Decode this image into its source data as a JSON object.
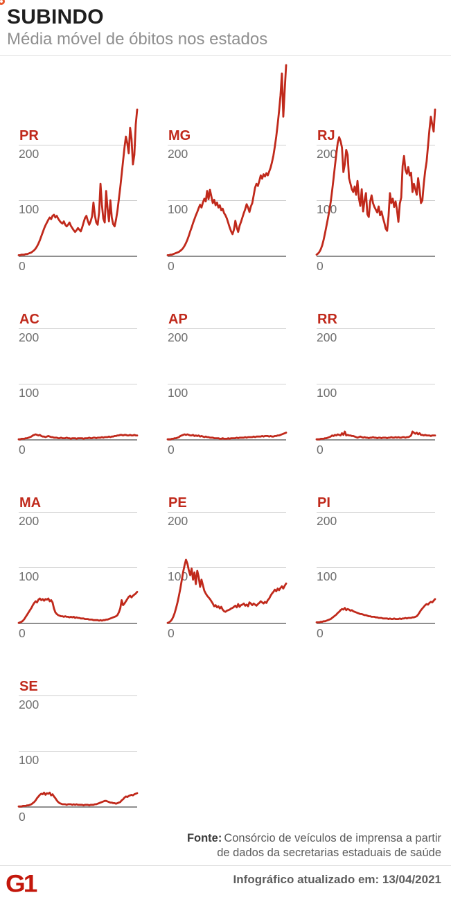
{
  "header": {
    "title": "SUBINDO",
    "subtitle": "Média móvel de óbitos nos estados"
  },
  "colors": {
    "line": "#c0291b",
    "state_label": "#c0291b",
    "gridline": "#cfcfcf",
    "zero_line": "#8f8f8f",
    "logo_red": "#c3170b"
  },
  "chart_data": {
    "type": "line",
    "layout": "small-multiples",
    "title": "Média móvel de óbitos nos estados",
    "xlabel": "",
    "ylabel": "",
    "yticks": [
      0,
      100,
      200
    ],
    "ylim": [
      0,
      350
    ],
    "grid": true,
    "legend": "none",
    "series": [
      {
        "name": "PR",
        "values": [
          2,
          2,
          3,
          3,
          3,
          4,
          4,
          5,
          6,
          7,
          9,
          11,
          14,
          18,
          23,
          29,
          36,
          43,
          50,
          56,
          61,
          66,
          70,
          67,
          73,
          75,
          70,
          73,
          68,
          64,
          61,
          59,
          63,
          57,
          54,
          57,
          61,
          55,
          51,
          47,
          44,
          47,
          51,
          48,
          45,
          52,
          61,
          69,
          73,
          64,
          57,
          63,
          72,
          97,
          74,
          61,
          57,
          79,
          131,
          93,
          68,
          61,
          118,
          86,
          63,
          101,
          70,
          58,
          54,
          66,
          82,
          103,
          124,
          148,
          172,
          196,
          216,
          204,
          186,
          232,
          212,
          166,
          183,
          238,
          265
        ]
      },
      {
        "name": "MG",
        "values": [
          2,
          2,
          3,
          3,
          4,
          5,
          6,
          7,
          8,
          10,
          12,
          15,
          19,
          24,
          30,
          37,
          45,
          52,
          60,
          67,
          74,
          80,
          87,
          93,
          88,
          97,
          104,
          99,
          118,
          103,
          120,
          108,
          96,
          102,
          92,
          97,
          88,
          92,
          83,
          86,
          78,
          74,
          68,
          60,
          52,
          45,
          40,
          48,
          64,
          52,
          44,
          55,
          62,
          70,
          78,
          85,
          94,
          88,
          80,
          90,
          96,
          110,
          124,
          131,
          127,
          136,
          146,
          140,
          148,
          144,
          150,
          146,
          153,
          160,
          170,
          182,
          198,
          216,
          238,
          262,
          290,
          330,
          252,
          300,
          345
        ]
      },
      {
        "name": "RJ",
        "values": [
          3,
          5,
          8,
          13,
          20,
          30,
          42,
          55,
          68,
          82,
          98,
          118,
          140,
          163,
          185,
          205,
          215,
          208,
          196,
          152,
          166,
          192,
          183,
          141,
          131,
          121,
          116,
          126,
          111,
          136,
          105,
          91,
          121,
          81,
          101,
          114,
          76,
          71,
          99,
          110,
          96,
          89,
          84,
          79,
          90,
          74,
          81,
          70,
          61,
          50,
          46,
          72,
          114,
          96,
          104,
          89,
          99,
          84,
          62,
          95,
          106,
          163,
          181,
          156,
          149,
          161,
          146,
          151,
          116,
          131,
          121,
          111,
          141,
          121,
          96,
          101,
          131,
          154,
          171,
          199,
          228,
          252,
          238,
          225,
          265
        ]
      },
      {
        "name": "AC",
        "values": [
          1,
          1,
          2,
          2,
          2,
          3,
          3,
          4,
          5,
          6,
          8,
          9,
          10,
          9,
          8,
          9,
          7,
          6,
          6,
          5,
          6,
          7,
          6,
          5,
          5,
          4,
          4,
          4,
          3,
          3,
          4,
          3,
          3,
          3,
          4,
          3,
          3,
          2,
          3,
          3,
          3,
          2,
          3,
          3,
          3,
          3,
          2,
          3,
          3,
          3,
          4,
          3,
          3,
          4,
          4,
          3,
          4,
          4,
          4,
          5,
          4,
          5,
          5,
          5,
          6,
          5,
          6,
          6,
          7,
          7,
          8,
          8,
          9,
          9,
          8,
          9,
          9,
          8,
          8,
          9,
          8,
          8,
          9,
          8,
          8
        ]
      },
      {
        "name": "AP",
        "values": [
          1,
          1,
          1,
          2,
          2,
          3,
          3,
          4,
          5,
          7,
          8,
          9,
          10,
          9,
          10,
          9,
          8,
          8,
          9,
          7,
          8,
          7,
          8,
          6,
          7,
          6,
          5,
          6,
          5,
          5,
          4,
          4,
          4,
          3,
          3,
          3,
          3,
          2,
          2,
          3,
          2,
          2,
          2,
          3,
          2,
          3,
          3,
          3,
          3,
          4,
          3,
          4,
          4,
          4,
          4,
          5,
          4,
          5,
          5,
          5,
          5,
          6,
          5,
          6,
          6,
          6,
          6,
          7,
          6,
          7,
          7,
          7,
          6,
          7,
          6,
          6,
          7,
          7,
          8,
          8,
          9,
          10,
          11,
          12,
          13
        ]
      },
      {
        "name": "RR",
        "values": [
          1,
          1,
          1,
          2,
          2,
          2,
          3,
          3,
          4,
          5,
          6,
          8,
          7,
          9,
          8,
          10,
          9,
          8,
          12,
          9,
          15,
          8,
          9,
          8,
          8,
          7,
          7,
          6,
          5,
          4,
          5,
          6,
          5,
          4,
          5,
          4,
          4,
          3,
          4,
          4,
          5,
          4,
          4,
          3,
          4,
          4,
          3,
          4,
          4,
          4,
          3,
          4,
          4,
          5,
          4,
          4,
          5,
          4,
          5,
          4,
          4,
          5,
          5,
          4,
          5,
          5,
          6,
          8,
          15,
          13,
          11,
          13,
          10,
          12,
          9,
          9,
          8,
          9,
          8,
          8,
          8,
          7,
          8,
          8,
          8
        ]
      },
      {
        "name": "MA",
        "values": [
          1,
          2,
          3,
          5,
          8,
          12,
          16,
          20,
          24,
          28,
          33,
          37,
          40,
          38,
          43,
          45,
          42,
          44,
          41,
          44,
          43,
          45,
          40,
          42,
          38,
          27,
          20,
          17,
          15,
          14,
          13,
          13,
          12,
          13,
          12,
          12,
          11,
          12,
          11,
          12,
          10,
          11,
          10,
          10,
          9,
          9,
          9,
          8,
          8,
          8,
          7,
          7,
          7,
          6,
          6,
          6,
          6,
          5,
          6,
          5,
          6,
          6,
          7,
          7,
          8,
          9,
          10,
          11,
          12,
          13,
          15,
          20,
          27,
          42,
          33,
          36,
          40,
          44,
          48,
          50,
          47,
          50,
          52,
          54,
          57
        ]
      },
      {
        "name": "PE",
        "values": [
          1,
          2,
          4,
          7,
          12,
          19,
          28,
          38,
          50,
          63,
          78,
          93,
          105,
          115,
          108,
          96,
          87,
          99,
          79,
          92,
          71,
          95,
          84,
          66,
          79,
          69,
          59,
          54,
          50,
          47,
          44,
          40,
          36,
          31,
          33,
          29,
          31,
          27,
          30,
          25,
          22,
          21,
          23,
          24,
          25,
          27,
          28,
          30,
          32,
          29,
          35,
          30,
          33,
          34,
          36,
          32,
          34,
          31,
          38,
          36,
          33,
          36,
          34,
          32,
          35,
          37,
          40,
          38,
          36,
          39,
          37,
          42,
          45,
          50,
          54,
          57,
          61,
          58,
          63,
          60,
          64,
          67,
          63,
          68,
          72
        ]
      },
      {
        "name": "PI",
        "values": [
          2,
          2,
          2,
          3,
          3,
          4,
          4,
          5,
          6,
          7,
          8,
          10,
          12,
          14,
          16,
          19,
          21,
          24,
          26,
          25,
          28,
          24,
          26,
          25,
          23,
          24,
          22,
          21,
          20,
          19,
          18,
          17,
          17,
          16,
          15,
          15,
          14,
          13,
          13,
          12,
          12,
          12,
          11,
          11,
          10,
          10,
          10,
          9,
          9,
          9,
          9,
          8,
          9,
          8,
          8,
          9,
          8,
          8,
          8,
          9,
          8,
          9,
          9,
          10,
          9,
          10,
          10,
          10,
          11,
          11,
          12,
          13,
          16,
          20,
          24,
          27,
          30,
          33,
          35,
          34,
          37,
          39,
          38,
          41,
          44
        ]
      },
      {
        "name": "SE",
        "values": [
          1,
          1,
          1,
          2,
          2,
          2,
          3,
          3,
          4,
          5,
          7,
          9,
          12,
          16,
          19,
          22,
          24,
          23,
          26,
          22,
          25,
          24,
          26,
          21,
          23,
          19,
          16,
          12,
          9,
          7,
          6,
          5,
          5,
          5,
          4,
          5,
          5,
          5,
          4,
          5,
          4,
          5,
          4,
          4,
          4,
          4,
          3,
          4,
          4,
          4,
          3,
          4,
          4,
          4,
          5,
          5,
          6,
          7,
          8,
          9,
          10,
          11,
          11,
          10,
          9,
          8,
          8,
          7,
          7,
          6,
          7,
          8,
          9,
          12,
          14,
          17,
          19,
          18,
          20,
          21,
          22,
          21,
          23,
          24,
          25
        ]
      }
    ]
  },
  "footer": {
    "source_label": "Fonte:",
    "source_line1": "Consórcio de veículos de imprensa a partir",
    "source_line2": "de dados da secretarias estaduais de saúde",
    "updated": "Infográfico atualizado em: 13/04/2021",
    "logo_text": "G1"
  }
}
